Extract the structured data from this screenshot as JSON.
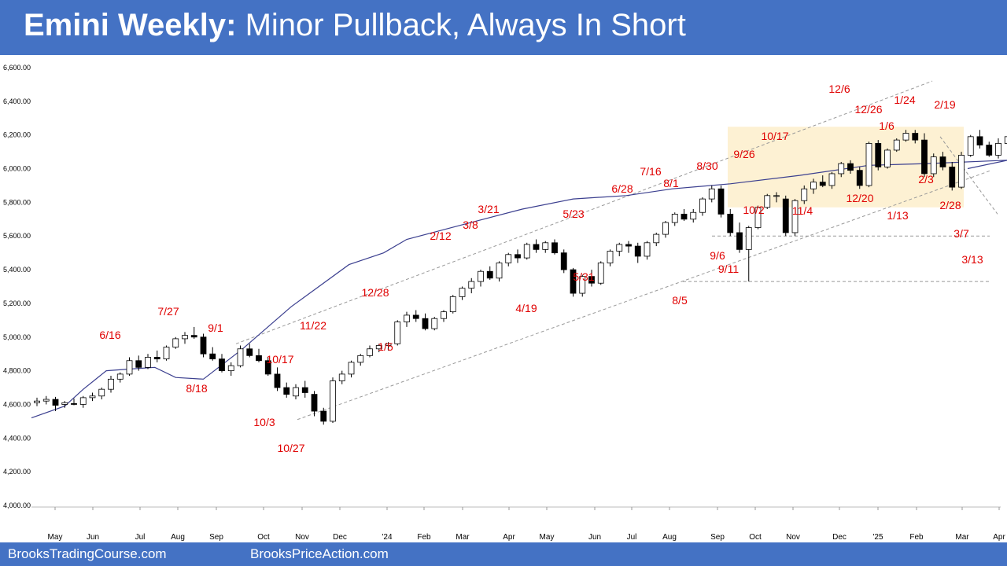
{
  "title": {
    "bold": "Emini Weekly:",
    "rest": " Minor Pullback, Always In Short"
  },
  "footer": {
    "left": "BrooksTradingCourse.com",
    "right": "BrooksPriceAction.com"
  },
  "colors": {
    "header": "#4472c4",
    "annotation": "#e00000",
    "ema": "#3b3f8f",
    "range_box": "#fdf1d3",
    "bull_bar": "#ffffff",
    "bear_bar": "#000000"
  },
  "chart_data": {
    "type": "candlestick",
    "title": "Emini Weekly",
    "ylim": [
      4000,
      6600
    ],
    "y_ticks": [
      "6,600.00",
      "6,400.00",
      "6,200.00",
      "6,000.00",
      "5,800.00",
      "5,600.00",
      "5,400.00",
      "5,200.00",
      "5,000.00",
      "4,800.00",
      "4,600.00",
      "4,400.00",
      "4,200.00",
      "4,000.00"
    ],
    "x_ticks": [
      "May",
      "Jun",
      "Jul",
      "Aug",
      "Sep",
      "Oct",
      "Nov",
      "Dec",
      "'24",
      "Feb",
      "Mar",
      "Apr",
      "May",
      "Jun",
      "Jul",
      "Aug",
      "Sep",
      "Oct",
      "Nov",
      "Dec",
      "'25",
      "Feb",
      "Mar",
      "Apr"
    ],
    "bars": [
      [
        4610,
        4640,
        4590,
        4620
      ],
      [
        4620,
        4650,
        4600,
        4630
      ],
      [
        4630,
        4645,
        4560,
        4595
      ],
      [
        4600,
        4620,
        4580,
        4610
      ],
      [
        4605,
        4635,
        4595,
        4600
      ],
      [
        4600,
        4650,
        4580,
        4640
      ],
      [
        4640,
        4670,
        4620,
        4650
      ],
      [
        4650,
        4700,
        4630,
        4690
      ],
      [
        4690,
        4770,
        4670,
        4750
      ],
      [
        4750,
        4790,
        4730,
        4780
      ],
      [
        4780,
        4880,
        4770,
        4860
      ],
      [
        4860,
        4890,
        4800,
        4820
      ],
      [
        4820,
        4900,
        4810,
        4880
      ],
      [
        4880,
        4920,
        4850,
        4870
      ],
      [
        4870,
        4950,
        4860,
        4940
      ],
      [
        4940,
        5000,
        4930,
        4990
      ],
      [
        4990,
        5030,
        4960,
        5010
      ],
      [
        5010,
        5060,
        4990,
        5000
      ],
      [
        5000,
        5020,
        4880,
        4900
      ],
      [
        4900,
        4940,
        4860,
        4870
      ],
      [
        4870,
        4900,
        4790,
        4800
      ],
      [
        4800,
        4850,
        4770,
        4830
      ],
      [
        4830,
        4950,
        4820,
        4930
      ],
      [
        4930,
        4960,
        4880,
        4890
      ],
      [
        4890,
        4930,
        4850,
        4860
      ],
      [
        4860,
        4880,
        4770,
        4780
      ],
      [
        4780,
        4820,
        4680,
        4700
      ],
      [
        4700,
        4730,
        4640,
        4660
      ],
      [
        4650,
        4720,
        4630,
        4700
      ],
      [
        4700,
        4740,
        4640,
        4670
      ],
      [
        4660,
        4680,
        4530,
        4560
      ],
      [
        4560,
        4580,
        4480,
        4500
      ],
      [
        4500,
        4760,
        4490,
        4740
      ],
      [
        4740,
        4800,
        4720,
        4780
      ],
      [
        4780,
        4860,
        4760,
        4850
      ],
      [
        4850,
        4900,
        4830,
        4890
      ],
      [
        4890,
        4950,
        4880,
        4930
      ],
      [
        4930,
        4960,
        4910,
        4950
      ],
      [
        4950,
        4970,
        4920,
        4960
      ],
      [
        4960,
        5100,
        4950,
        5090
      ],
      [
        5090,
        5150,
        5060,
        5130
      ],
      [
        5130,
        5160,
        5090,
        5110
      ],
      [
        5110,
        5140,
        5040,
        5050
      ],
      [
        5050,
        5120,
        5040,
        5110
      ],
      [
        5110,
        5160,
        5090,
        5150
      ],
      [
        5150,
        5250,
        5140,
        5240
      ],
      [
        5240,
        5300,
        5220,
        5290
      ],
      [
        5290,
        5350,
        5260,
        5330
      ],
      [
        5330,
        5400,
        5300,
        5390
      ],
      [
        5390,
        5420,
        5340,
        5350
      ],
      [
        5350,
        5450,
        5330,
        5440
      ],
      [
        5440,
        5500,
        5420,
        5490
      ],
      [
        5490,
        5520,
        5440,
        5470
      ],
      [
        5470,
        5560,
        5460,
        5550
      ],
      [
        5550,
        5580,
        5500,
        5520
      ],
      [
        5520,
        5570,
        5500,
        5560
      ],
      [
        5560,
        5580,
        5490,
        5500
      ],
      [
        5500,
        5520,
        5380,
        5400
      ],
      [
        5400,
        5410,
        5240,
        5260
      ],
      [
        5260,
        5370,
        5240,
        5360
      ],
      [
        5360,
        5400,
        5300,
        5320
      ],
      [
        5320,
        5450,
        5310,
        5440
      ],
      [
        5440,
        5520,
        5420,
        5510
      ],
      [
        5510,
        5560,
        5480,
        5550
      ],
      [
        5550,
        5570,
        5500,
        5540
      ],
      [
        5540,
        5560,
        5440,
        5480
      ],
      [
        5480,
        5570,
        5460,
        5560
      ],
      [
        5560,
        5620,
        5540,
        5610
      ],
      [
        5610,
        5690,
        5590,
        5680
      ],
      [
        5680,
        5740,
        5660,
        5730
      ],
      [
        5730,
        5760,
        5690,
        5700
      ],
      [
        5700,
        5760,
        5680,
        5740
      ],
      [
        5740,
        5830,
        5720,
        5820
      ],
      [
        5820,
        5900,
        5800,
        5880
      ],
      [
        5880,
        5900,
        5710,
        5730
      ],
      [
        5730,
        5760,
        5600,
        5620
      ],
      [
        5620,
        5680,
        5500,
        5520
      ],
      [
        5520,
        5660,
        5330,
        5650
      ],
      [
        5650,
        5780,
        5640,
        5770
      ],
      [
        5770,
        5850,
        5760,
        5840
      ],
      [
        5840,
        5860,
        5800,
        5840
      ],
      [
        5820,
        5840,
        5600,
        5620
      ],
      [
        5620,
        5820,
        5600,
        5810
      ],
      [
        5810,
        5900,
        5790,
        5880
      ],
      [
        5880,
        5940,
        5850,
        5920
      ],
      [
        5920,
        5960,
        5890,
        5900
      ],
      [
        5900,
        5980,
        5880,
        5970
      ],
      [
        5970,
        6040,
        5950,
        6030
      ],
      [
        6030,
        6050,
        5970,
        5990
      ],
      [
        5990,
        6010,
        5880,
        5900
      ],
      [
        5900,
        6160,
        5890,
        6150
      ],
      [
        6150,
        6170,
        5990,
        6010
      ],
      [
        6010,
        6120,
        6000,
        6110
      ],
      [
        6110,
        6180,
        6100,
        6170
      ],
      [
        6170,
        6230,
        6160,
        6210
      ],
      [
        6210,
        6230,
        6150,
        6170
      ],
      [
        6170,
        6210,
        5950,
        5970
      ],
      [
        5970,
        6090,
        5950,
        6070
      ],
      [
        6070,
        6100,
        5990,
        6010
      ],
      [
        6010,
        6040,
        5870,
        5890
      ],
      [
        5890,
        6100,
        5880,
        6080
      ],
      [
        6080,
        6200,
        6070,
        6190
      ],
      [
        6190,
        6230,
        6120,
        6140
      ],
      [
        6140,
        6160,
        6070,
        6080
      ],
      [
        6080,
        6180,
        6060,
        6150
      ],
      [
        6150,
        6220,
        6130,
        6190
      ],
      [
        6190,
        6220,
        6070,
        6090
      ],
      [
        6090,
        6120,
        5860,
        5880
      ],
      [
        5880,
        5960,
        5730,
        5820
      ],
      [
        5820,
        5830,
        5570,
        5630
      ],
      [
        5630,
        5730,
        5620,
        5710
      ]
    ],
    "ema20": [
      [
        0,
        4520
      ],
      [
        12,
        4590
      ],
      [
        20,
        4690
      ],
      [
        30,
        4800
      ],
      [
        40,
        4810
      ],
      [
        51,
        4820
      ],
      [
        60,
        4760
      ],
      [
        72,
        4750
      ],
      [
        89,
        4930
      ],
      [
        110,
        5180
      ],
      [
        135,
        5430
      ],
      [
        150,
        5500
      ],
      [
        160,
        5580
      ],
      [
        185,
        5670
      ],
      [
        210,
        5760
      ],
      [
        232,
        5820
      ],
      [
        255,
        5840
      ],
      [
        275,
        5880
      ],
      [
        300,
        5910
      ],
      [
        330,
        5960
      ],
      [
        360,
        6020
      ],
      [
        385,
        6030
      ],
      [
        420,
        6050
      ],
      [
        436,
        6000
      ]
    ],
    "annotations": [
      "6/16",
      "7/27",
      "8/18",
      "9/1",
      "10/17",
      "10/3",
      "10/27",
      "11/22",
      "12/28",
      "1/5",
      "2/12",
      "3/8",
      "3/21",
      "4/19",
      "5/23",
      "5/31",
      "6/28",
      "7/16",
      "8/1",
      "8/5",
      "8/30",
      "9/6",
      "9/11",
      "9/26",
      "10/2",
      "10/17",
      "11/4",
      "12/6",
      "12/20",
      "12/26",
      "1/6",
      "1/13",
      "1/24",
      "2/3",
      "2/19",
      "2/28",
      "3/7",
      "3/13"
    ]
  }
}
